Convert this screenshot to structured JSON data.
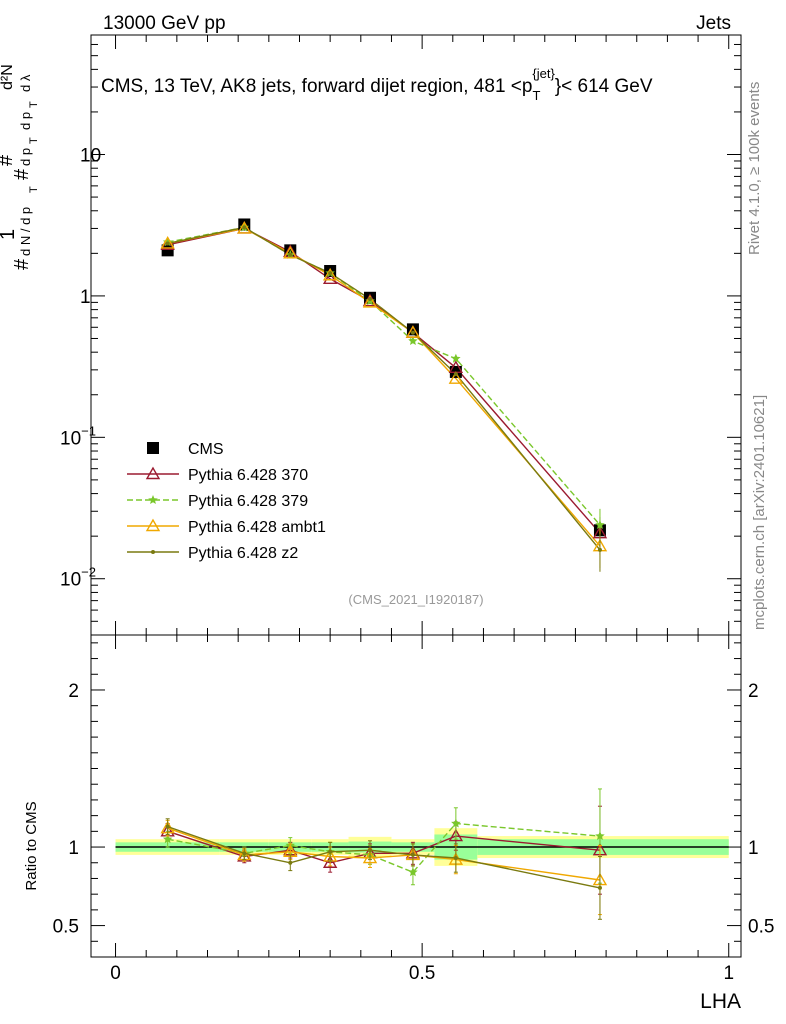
{
  "header": {
    "left": "13000 GeV pp",
    "right": "Jets",
    "title_main": "CMS, 13 TeV, AK8 jets, forward dijet region, 481 <p",
    "title_sup": "{jet}",
    "title_sub": "T",
    "title_tail": "}< 614 GeV",
    "analysis_id": "(CMS_2021_I1920187)"
  },
  "side_labels": {
    "rivet": "Rivet 4.1.0, ≥ 100k events",
    "mcplots": "mcplots.cern.ch [arXiv:2401.10621]"
  },
  "axes": {
    "xlabel": "LHA",
    "ylabel_main": "1/dN/dp_T  d²N/(dp_T dλ)",
    "ylabel_ratio": "Ratio to CMS",
    "xlim": [
      -0.04,
      1.02
    ],
    "ylim_main": [
      0.004,
      70
    ],
    "ylim_ratio": [
      0.3,
      2.35
    ],
    "x_ticks": [
      {
        "v": 0,
        "label": "0"
      },
      {
        "v": 0.5,
        "label": "0.5"
      },
      {
        "v": 1,
        "label": "1"
      }
    ],
    "y_ticks_main": [
      {
        "v": 0.01,
        "base": "10",
        "exp": "−2"
      },
      {
        "v": 0.1,
        "base": "10",
        "exp": "−1"
      },
      {
        "v": 1,
        "base": "1",
        "exp": ""
      },
      {
        "v": 10,
        "base": "10",
        "exp": ""
      }
    ],
    "y_ticks_ratio": [
      {
        "v": 0.5,
        "label": "0.5"
      },
      {
        "v": 1,
        "label": "1"
      },
      {
        "v": 2,
        "label": "2"
      }
    ]
  },
  "chart_data": {
    "type": "line",
    "title": "CMS, 13 TeV, AK8 jets, forward dijet region, 481 <p_T^{jet}< 614 GeV",
    "xlabel": "LHA",
    "ylabel": "1/dN/dp_T d²N/dp_T dλ",
    "yscale": "log",
    "x": [
      0.085,
      0.21,
      0.285,
      0.35,
      0.415,
      0.485,
      0.555,
      0.79
    ],
    "bin_edges": [
      0,
      0.17,
      0.25,
      0.32,
      0.38,
      0.45,
      0.52,
      0.59,
      1.0
    ],
    "data": {
      "name": "CMS",
      "values": [
        2.1,
        3.2,
        2.1,
        1.5,
        0.97,
        0.58,
        0.29,
        0.022
      ]
    },
    "series": [
      {
        "name": "Pythia 6.428 370",
        "color": "#9b1b30",
        "style": "solid",
        "marker": "triangle-open",
        "values": [
          2.3,
          3.0,
          2.05,
          1.32,
          0.92,
          0.55,
          0.31,
          0.021
        ],
        "ratio": [
          1.1,
          0.94,
          0.98,
          0.9,
          0.96,
          0.96,
          1.07,
          0.98
        ],
        "ratio_err": [
          0.05,
          0.04,
          0.05,
          0.06,
          0.06,
          0.07,
          0.09,
          0.28
        ]
      },
      {
        "name": "Pythia 6.428 379",
        "color": "#7ac72b",
        "style": "dashed",
        "marker": "star",
        "values": [
          2.4,
          3.05,
          1.95,
          1.45,
          0.92,
          0.48,
          0.36,
          0.024
        ],
        "ratio": [
          1.05,
          0.96,
          1.01,
          0.97,
          0.95,
          0.84,
          1.15,
          1.07
        ],
        "ratio_err": [
          0.05,
          0.04,
          0.05,
          0.06,
          0.06,
          0.08,
          0.1,
          0.3
        ]
      },
      {
        "name": "Pythia 6.428 ambt1",
        "color": "#f0a800",
        "style": "solid",
        "marker": "triangle-open",
        "values": [
          2.35,
          3.0,
          2.0,
          1.4,
          0.9,
          0.55,
          0.26,
          0.017
        ],
        "ratio": [
          1.12,
          0.95,
          0.97,
          0.94,
          0.93,
          0.95,
          0.92,
          0.79
        ],
        "ratio_err": [
          0.05,
          0.04,
          0.05,
          0.06,
          0.06,
          0.07,
          0.09,
          0.22
        ]
      },
      {
        "name": "Pythia 6.428 z2",
        "color": "#7a7a10",
        "style": "solid",
        "marker": "dot",
        "values": [
          2.35,
          3.05,
          1.95,
          1.45,
          0.95,
          0.55,
          0.28,
          0.016
        ],
        "ratio": [
          1.13,
          0.96,
          0.9,
          0.97,
          0.98,
          0.95,
          0.93,
          0.74
        ],
        "ratio_err": [
          0.05,
          0.04,
          0.05,
          0.06,
          0.06,
          0.07,
          0.09,
          0.2
        ]
      }
    ],
    "data_band_inner": [
      0.03,
      0.03,
      0.03,
      0.03,
      0.035,
      0.03,
      0.08,
      0.05
    ],
    "data_band_outer": [
      0.05,
      0.05,
      0.05,
      0.05,
      0.065,
      0.05,
      0.12,
      0.07
    ],
    "band_colors": {
      "inner": "#99ff99",
      "outer": "#ffff99"
    }
  }
}
